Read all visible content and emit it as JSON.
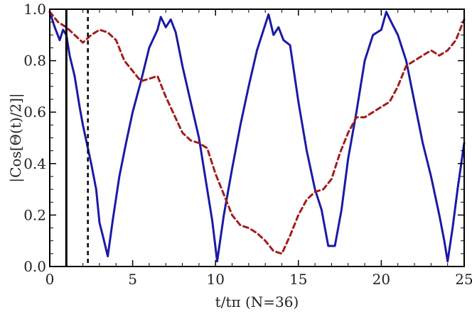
{
  "chart_data": {
    "type": "line",
    "xlabel": "t/tπ (N=36)",
    "ylabel": "|Cos[Θ(t)/2]|",
    "xlim": [
      0,
      25
    ],
    "ylim": [
      0,
      1
    ],
    "x_ticks": [
      0,
      5,
      10,
      15,
      20,
      25
    ],
    "x_tick_labels": [
      "0",
      "5",
      "10",
      "15",
      "20",
      "25"
    ],
    "y_ticks": [
      0,
      0.2,
      0.4,
      0.6,
      0.8,
      1.0
    ],
    "y_tick_labels": [
      "0.0",
      "0.2",
      "0.4",
      "0.6",
      "0.8",
      "1.0"
    ],
    "grid": false,
    "vertical_lines": [
      {
        "x": 1.0,
        "style": "solid",
        "color": "#000000"
      },
      {
        "x": 2.3,
        "style": "dashed",
        "color": "#000000"
      }
    ],
    "series": [
      {
        "style": "solid",
        "color": "#1a1aa6",
        "points": [
          [
            0.0,
            0.99
          ],
          [
            0.3,
            0.93
          ],
          [
            0.6,
            0.88
          ],
          [
            0.8,
            0.92
          ],
          [
            1.0,
            0.9
          ],
          [
            1.2,
            0.82
          ],
          [
            1.5,
            0.74
          ],
          [
            1.8,
            0.62
          ],
          [
            2.0,
            0.55
          ],
          [
            2.3,
            0.46
          ],
          [
            2.5,
            0.4
          ],
          [
            2.8,
            0.3
          ],
          [
            3.0,
            0.17
          ],
          [
            3.2,
            0.12
          ],
          [
            3.5,
            0.04
          ],
          [
            3.8,
            0.18
          ],
          [
            4.2,
            0.35
          ],
          [
            4.6,
            0.48
          ],
          [
            5.0,
            0.6
          ],
          [
            5.5,
            0.72
          ],
          [
            6.0,
            0.85
          ],
          [
            6.5,
            0.92
          ],
          [
            6.7,
            0.97
          ],
          [
            7.0,
            0.93
          ],
          [
            7.3,
            0.96
          ],
          [
            7.6,
            0.91
          ],
          [
            8.0,
            0.78
          ],
          [
            8.5,
            0.64
          ],
          [
            9.0,
            0.5
          ],
          [
            9.5,
            0.3
          ],
          [
            9.8,
            0.18
          ],
          [
            10.1,
            0.02
          ],
          [
            10.5,
            0.2
          ],
          [
            11.0,
            0.38
          ],
          [
            11.5,
            0.55
          ],
          [
            12.0,
            0.7
          ],
          [
            12.5,
            0.84
          ],
          [
            12.9,
            0.92
          ],
          [
            13.2,
            0.98
          ],
          [
            13.5,
            0.9
          ],
          [
            13.8,
            0.93
          ],
          [
            14.1,
            0.88
          ],
          [
            14.5,
            0.86
          ],
          [
            15.0,
            0.64
          ],
          [
            15.5,
            0.45
          ],
          [
            16.0,
            0.3
          ],
          [
            16.4,
            0.22
          ],
          [
            16.8,
            0.08
          ],
          [
            17.2,
            0.08
          ],
          [
            17.6,
            0.22
          ],
          [
            18.0,
            0.42
          ],
          [
            18.5,
            0.6
          ],
          [
            19.0,
            0.8
          ],
          [
            19.5,
            0.9
          ],
          [
            20.0,
            0.92
          ],
          [
            20.3,
            0.99
          ],
          [
            20.6,
            0.95
          ],
          [
            21.0,
            0.9
          ],
          [
            21.5,
            0.8
          ],
          [
            22.0,
            0.64
          ],
          [
            22.5,
            0.48
          ],
          [
            23.0,
            0.35
          ],
          [
            23.5,
            0.2
          ],
          [
            23.8,
            0.1
          ],
          [
            24.0,
            0.02
          ],
          [
            24.3,
            0.15
          ],
          [
            24.6,
            0.3
          ],
          [
            25.0,
            0.48
          ]
        ]
      },
      {
        "style": "dashed",
        "color": "#a31d1d",
        "points": [
          [
            0.0,
            0.99
          ],
          [
            0.5,
            0.95
          ],
          [
            1.0,
            0.93
          ],
          [
            1.5,
            0.9
          ],
          [
            2.0,
            0.87
          ],
          [
            2.5,
            0.9
          ],
          [
            3.0,
            0.92
          ],
          [
            3.5,
            0.91
          ],
          [
            4.0,
            0.88
          ],
          [
            4.5,
            0.8
          ],
          [
            5.0,
            0.76
          ],
          [
            5.5,
            0.72
          ],
          [
            6.0,
            0.73
          ],
          [
            6.5,
            0.74
          ],
          [
            7.0,
            0.66
          ],
          [
            7.5,
            0.59
          ],
          [
            8.0,
            0.52
          ],
          [
            8.5,
            0.49
          ],
          [
            9.0,
            0.48
          ],
          [
            9.5,
            0.46
          ],
          [
            10.0,
            0.36
          ],
          [
            10.5,
            0.28
          ],
          [
            11.0,
            0.2
          ],
          [
            11.5,
            0.16
          ],
          [
            12.0,
            0.15
          ],
          [
            12.5,
            0.13
          ],
          [
            13.0,
            0.1
          ],
          [
            13.5,
            0.06
          ],
          [
            14.0,
            0.05
          ],
          [
            14.5,
            0.12
          ],
          [
            15.0,
            0.2
          ],
          [
            15.5,
            0.26
          ],
          [
            16.0,
            0.29
          ],
          [
            16.5,
            0.3
          ],
          [
            17.0,
            0.34
          ],
          [
            17.5,
            0.44
          ],
          [
            18.0,
            0.52
          ],
          [
            18.5,
            0.58
          ],
          [
            19.0,
            0.58
          ],
          [
            19.5,
            0.6
          ],
          [
            20.0,
            0.62
          ],
          [
            20.5,
            0.64
          ],
          [
            21.0,
            0.7
          ],
          [
            21.5,
            0.78
          ],
          [
            22.0,
            0.8
          ],
          [
            22.5,
            0.82
          ],
          [
            23.0,
            0.84
          ],
          [
            23.5,
            0.82
          ],
          [
            24.0,
            0.84
          ],
          [
            24.5,
            0.88
          ],
          [
            25.0,
            0.96
          ]
        ]
      }
    ]
  }
}
